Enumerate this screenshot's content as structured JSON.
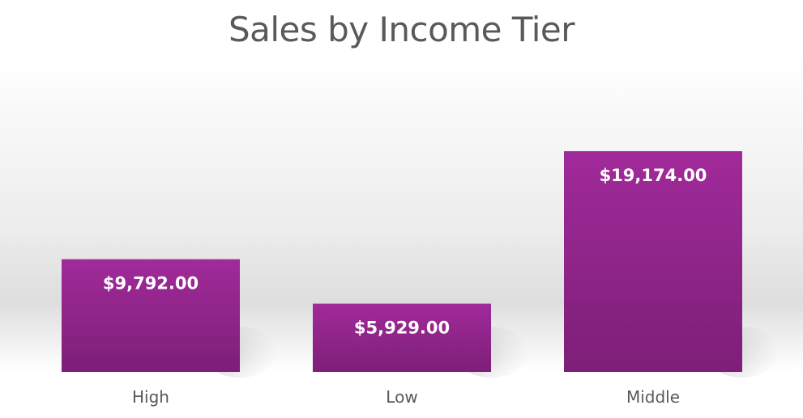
{
  "chart_data": {
    "type": "bar",
    "title": "Sales by Income Tier",
    "xlabel": "",
    "ylabel": "",
    "categories": [
      "High",
      "Low",
      "Middle"
    ],
    "values": [
      9792,
      5929,
      19174
    ],
    "data_labels": [
      "$9,792.00",
      "$5,929.00",
      "$19,174.00"
    ],
    "grid": false,
    "legend": "none",
    "colors": {
      "bar_top": "#a12a9a",
      "bar_bottom": "#7d1f78",
      "label": "#ffffff",
      "tick": "#595959",
      "title": "#595959"
    }
  }
}
